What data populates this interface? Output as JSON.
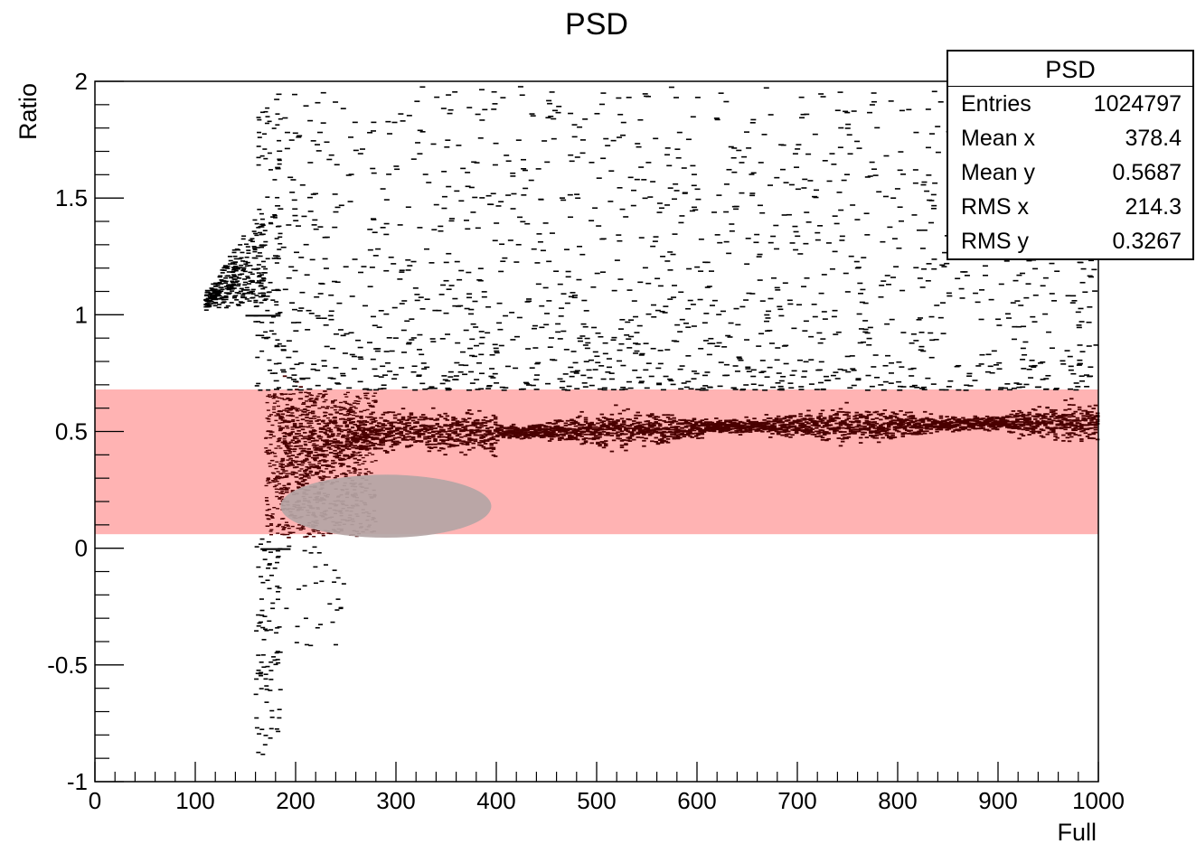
{
  "chart_data": {
    "type": "scatter",
    "title": "PSD",
    "xlabel": "Full",
    "ylabel": "Ratio",
    "xlim": [
      0,
      1000
    ],
    "ylim": [
      -1,
      2
    ],
    "x_ticks": [
      "0",
      "100",
      "200",
      "300",
      "400",
      "500",
      "600",
      "700",
      "800",
      "900",
      "1000"
    ],
    "y_ticks": [
      "-1",
      "-0.5",
      "0",
      "0.5",
      "1",
      "1.5",
      "2"
    ],
    "grid": false,
    "point_color": "#4a0000",
    "main_band": {
      "description_y_center": [
        {
          "x": 180,
          "y": 0.4
        },
        {
          "x": 250,
          "y": 0.48
        },
        {
          "x": 300,
          "y": 0.5
        },
        {
          "x": 400,
          "y": 0.5
        },
        {
          "x": 500,
          "y": 0.51
        },
        {
          "x": 600,
          "y": 0.52
        },
        {
          "x": 700,
          "y": 0.53
        },
        {
          "x": 800,
          "y": 0.53
        },
        {
          "x": 900,
          "y": 0.54
        },
        {
          "x": 1000,
          "y": 0.54
        }
      ]
    },
    "highlight_band": {
      "y_range": [
        0.06,
        0.68
      ],
      "color": "#ffb3b3"
    },
    "highlight_ellipse": {
      "x_center": 290,
      "y_center": 0.18,
      "x_radius": 105,
      "y_radius": 0.135,
      "color": "#b4a5a5"
    },
    "stats": {
      "title": "PSD",
      "rows": [
        {
          "label": "Entries",
          "value": "1024797"
        },
        {
          "label": "Mean x",
          "value": "378.4"
        },
        {
          "label": "Mean y",
          "value": "0.5687"
        },
        {
          "label": "RMS x",
          "value": "214.3"
        },
        {
          "label": "RMS y",
          "value": "0.3267"
        }
      ]
    }
  }
}
